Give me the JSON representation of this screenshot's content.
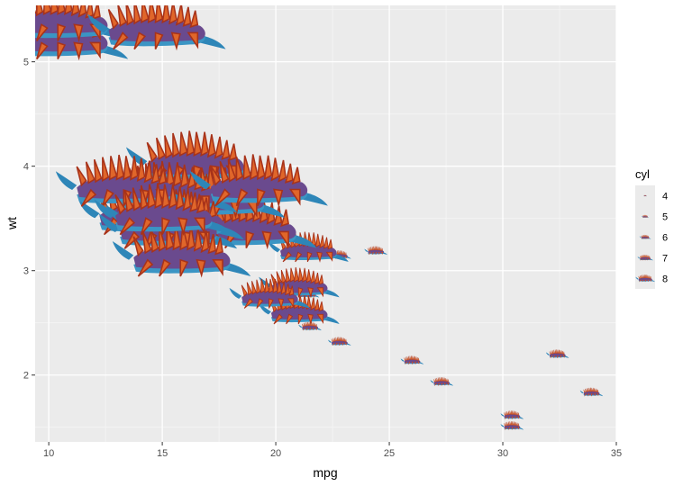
{
  "chart_data": {
    "type": "scatter",
    "title": "",
    "xlabel": "mpg",
    "ylabel": "wt",
    "xlim": [
      9.4,
      35.0
    ],
    "ylim": [
      1.36,
      5.54
    ],
    "xticks": [
      10,
      15,
      20,
      25,
      30,
      35
    ],
    "yticks": [
      2,
      3,
      4,
      5
    ],
    "grid": true,
    "legend": {
      "title": "cyl",
      "position": "right",
      "entries": [
        "4",
        "5",
        "6",
        "7",
        "8"
      ]
    },
    "points": [
      {
        "x": 21.0,
        "y": 2.62,
        "cyl": 6
      },
      {
        "x": 21.0,
        "y": 2.875,
        "cyl": 6
      },
      {
        "x": 22.8,
        "y": 2.32,
        "cyl": 4
      },
      {
        "x": 21.4,
        "y": 3.215,
        "cyl": 6
      },
      {
        "x": 18.7,
        "y": 3.44,
        "cyl": 8
      },
      {
        "x": 18.1,
        "y": 3.46,
        "cyl": 6
      },
      {
        "x": 14.3,
        "y": 3.57,
        "cyl": 8
      },
      {
        "x": 24.4,
        "y": 3.19,
        "cyl": 4
      },
      {
        "x": 22.8,
        "y": 3.15,
        "cyl": 4
      },
      {
        "x": 19.2,
        "y": 3.44,
        "cyl": 6
      },
      {
        "x": 17.8,
        "y": 3.44,
        "cyl": 6
      },
      {
        "x": 16.4,
        "y": 4.07,
        "cyl": 8
      },
      {
        "x": 17.3,
        "y": 3.73,
        "cyl": 8
      },
      {
        "x": 15.2,
        "y": 3.78,
        "cyl": 8
      },
      {
        "x": 10.4,
        "y": 5.25,
        "cyl": 8
      },
      {
        "x": 10.4,
        "y": 5.424,
        "cyl": 8
      },
      {
        "x": 14.7,
        "y": 5.345,
        "cyl": 8
      },
      {
        "x": 32.4,
        "y": 2.2,
        "cyl": 4
      },
      {
        "x": 30.4,
        "y": 1.615,
        "cyl": 4
      },
      {
        "x": 33.9,
        "y": 1.835,
        "cyl": 4
      },
      {
        "x": 21.5,
        "y": 2.465,
        "cyl": 4
      },
      {
        "x": 15.5,
        "y": 3.52,
        "cyl": 8
      },
      {
        "x": 15.2,
        "y": 3.435,
        "cyl": 8
      },
      {
        "x": 13.3,
        "y": 3.84,
        "cyl": 8
      },
      {
        "x": 19.2,
        "y": 3.845,
        "cyl": 8
      },
      {
        "x": 27.3,
        "y": 1.935,
        "cyl": 4
      },
      {
        "x": 26.0,
        "y": 2.14,
        "cyl": 4
      },
      {
        "x": 30.4,
        "y": 1.513,
        "cyl": 4
      },
      {
        "x": 15.8,
        "y": 3.17,
        "cyl": 8
      },
      {
        "x": 19.7,
        "y": 2.77,
        "cyl": 6
      },
      {
        "x": 15.0,
        "y": 3.57,
        "cyl": 8
      },
      {
        "x": 21.4,
        "y": 2.78,
        "cyl": 4
      }
    ],
    "marker": "nudibranch-icon",
    "colors": {
      "panel": "#ebebeb",
      "grid_major": "#ffffff",
      "grid_minor": "#f5f5f5",
      "body": "#6a4a8e",
      "tail": "#2e86b8",
      "cerata": "#e0662a",
      "cerata_dark": "#a8331a"
    }
  }
}
